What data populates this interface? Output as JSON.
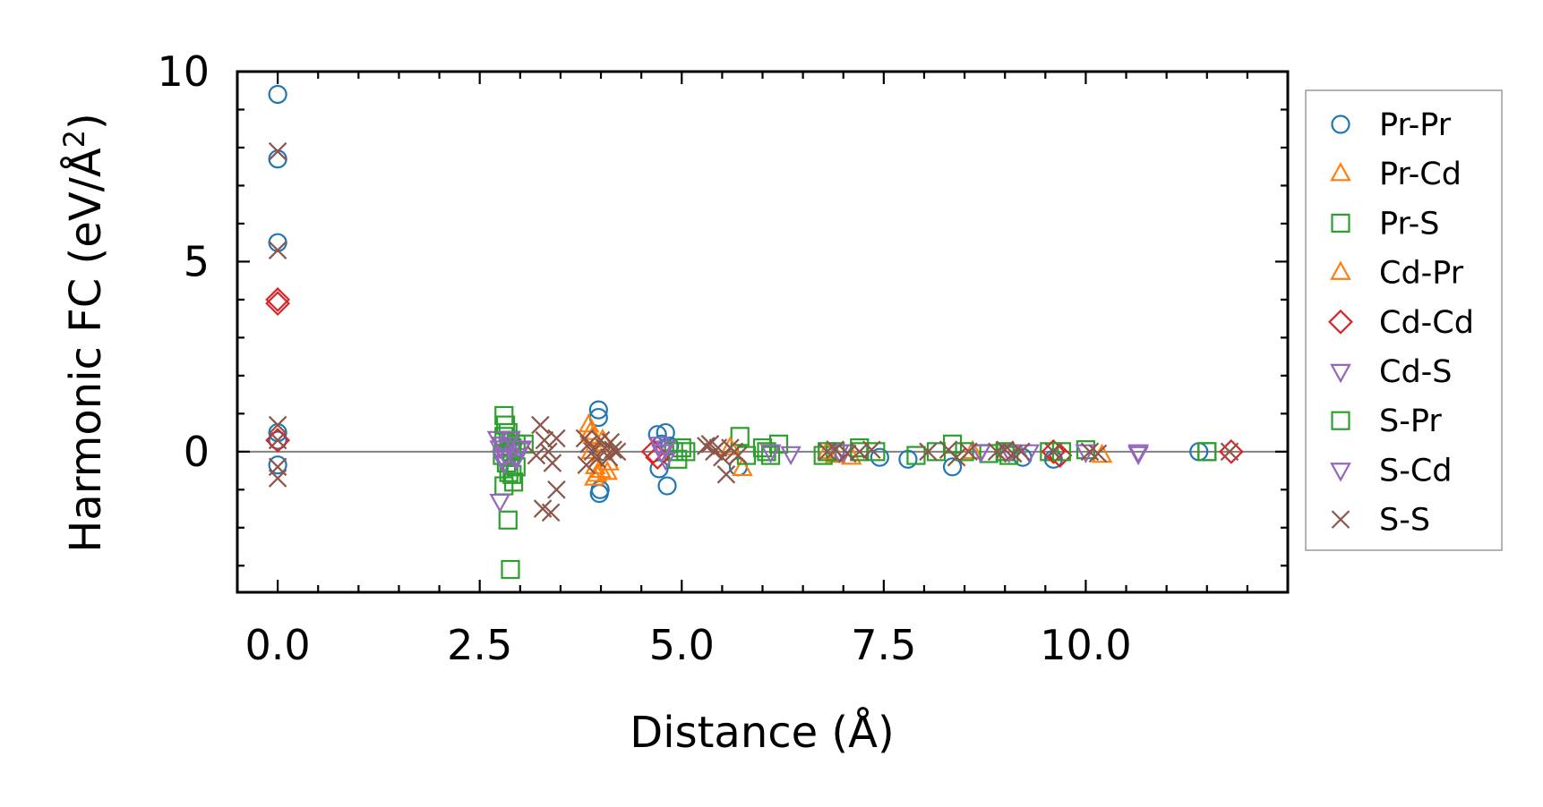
{
  "chart_data": {
    "type": "scatter",
    "title": "",
    "xlabel": "Distance (Å)",
    "ylabel_main": "Harmonic FC (eV/Å",
    "ylabel_sup": "2",
    "ylabel_close": ")",
    "xlim": [
      -0.5,
      12.5
    ],
    "ylim": [
      -3.7,
      10.0
    ],
    "xticks": [
      0.0,
      2.5,
      5.0,
      7.5,
      10.0
    ],
    "xtick_labels": [
      "0.0",
      "2.5",
      "5.0",
      "7.5",
      "10.0"
    ],
    "yticks": [
      0,
      5,
      10
    ],
    "ytick_labels": [
      "0",
      "5",
      "10"
    ],
    "grid": false,
    "legend_position": "right-outside",
    "zero_line": 0,
    "series": [
      {
        "name": "Pr-Pr",
        "marker": "circle",
        "color": "#1f77b4",
        "x": [
          0,
          0,
          0,
          0,
          0,
          0,
          3.97,
          3.97,
          3.98,
          3.99,
          4.0,
          4.7,
          4.72,
          4.75,
          4.8,
          4.82,
          4.85,
          5.7,
          7.45,
          7.8,
          8.35,
          9.22,
          9.6,
          11.4
        ],
        "y": [
          9.4,
          7.7,
          5.5,
          0.3,
          -0.35,
          0.5,
          1.1,
          0.9,
          -1.1,
          -1.0,
          0.0,
          0.45,
          -0.45,
          0.2,
          0.5,
          -0.9,
          0.15,
          -0.4,
          -0.15,
          -0.2,
          -0.4,
          -0.15,
          -0.2,
          0.0
        ]
      },
      {
        "name": "Pr-Cd",
        "marker": "triangle-up",
        "color": "#ff7f0e",
        "x": [
          3.85,
          3.9,
          3.95,
          4.0,
          4.05,
          4.1,
          3.88,
          3.92,
          5.75,
          6.9,
          7.1,
          8.6,
          10.2
        ],
        "y": [
          0.7,
          0.4,
          -0.6,
          -0.5,
          0.2,
          -0.3,
          0.0,
          -0.7,
          -0.45,
          -0.1,
          -0.15,
          0.0,
          -0.1
        ]
      },
      {
        "name": "Pr-S",
        "marker": "square",
        "color": "#2ca02c",
        "x": [
          2.8,
          2.82,
          2.85,
          2.88,
          2.9,
          2.78,
          2.83,
          2.86,
          2.92,
          2.95,
          2.8,
          2.85,
          2.9,
          2.88,
          4.9,
          4.95,
          5.0,
          5.72,
          5.8,
          6.0,
          6.1,
          6.2,
          6.75,
          6.9,
          7.2,
          7.4,
          7.9,
          8.15,
          8.35,
          8.8,
          9.05,
          9.55,
          10.0,
          11.5
        ],
        "y": [
          0.95,
          0.7,
          0.5,
          0.3,
          0.1,
          -0.1,
          -0.3,
          -0.55,
          -0.8,
          0.2,
          -0.9,
          -1.8,
          -0.6,
          -3.1,
          0.0,
          -0.2,
          0.1,
          0.4,
          -0.1,
          0.1,
          -0.1,
          0.2,
          -0.1,
          0.0,
          0.1,
          0.0,
          -0.1,
          0.0,
          0.2,
          -0.05,
          -0.1,
          0.0,
          0.05,
          0.0
        ]
      },
      {
        "name": "Cd-Pr",
        "marker": "triangle-up",
        "color": "#ff7f0e",
        "x": [
          3.87,
          3.93,
          4.02,
          4.08,
          5.6,
          6.8
        ],
        "y": [
          0.5,
          -0.4,
          0.3,
          -0.55,
          0.1,
          0.0
        ]
      },
      {
        "name": "Cd-Cd",
        "marker": "diamond",
        "color": "#d62728",
        "x": [
          0,
          0,
          0,
          4.65,
          4.7,
          9.6,
          9.68,
          11.8
        ],
        "y": [
          4.0,
          3.9,
          0.3,
          0.0,
          -0.15,
          0.0,
          -0.1,
          0.0
        ]
      },
      {
        "name": "Cd-S",
        "marker": "triangle-down",
        "color": "#9467bd",
        "x": [
          2.72,
          2.75,
          2.78,
          2.8,
          2.85,
          2.9,
          2.95,
          3.0,
          4.72,
          4.75,
          4.8,
          6.35,
          7.0,
          8.7,
          9.05,
          9.3,
          10.65
        ],
        "y": [
          0.35,
          0.1,
          -0.15,
          -0.3,
          0.2,
          0.0,
          -0.1,
          0.05,
          0.2,
          0.0,
          -0.2,
          -0.05,
          0.0,
          0.0,
          0.0,
          0.0,
          -0.05
        ]
      },
      {
        "name": "S-Pr",
        "marker": "square",
        "color": "#2ca02c",
        "x": [
          2.8,
          2.9,
          2.95,
          3.05,
          5.05,
          6.05,
          6.8,
          7.2,
          8.5,
          9.0,
          9.7,
          11.5
        ],
        "y": [
          0.4,
          0.0,
          -0.4,
          0.2,
          0.0,
          0.0,
          0.0,
          0.0,
          0.0,
          0.0,
          0.0,
          0.0
        ]
      },
      {
        "name": "S-Cd",
        "marker": "triangle-down",
        "color": "#9467bd",
        "x": [
          2.75,
          2.78,
          2.82,
          2.88,
          2.95,
          3.02,
          4.8,
          6.1,
          6.95,
          8.7,
          9.05,
          10.0,
          10.65
        ],
        "y": [
          -1.3,
          0.2,
          -0.1,
          0.35,
          -0.2,
          0.1,
          0.1,
          0.0,
          0.0,
          0.0,
          0.0,
          0.0,
          0.0
        ]
      },
      {
        "name": "S-S",
        "marker": "x",
        "color": "#8c564b",
        "x": [
          0,
          0,
          0,
          0,
          0,
          0,
          3.25,
          3.3,
          3.35,
          3.4,
          3.45,
          3.2,
          3.28,
          3.38,
          3.45,
          3.8,
          3.85,
          3.9,
          3.95,
          4.0,
          4.05,
          4.1,
          4.15,
          4.2,
          3.82,
          4.12,
          5.3,
          5.4,
          5.5,
          5.6,
          5.7,
          5.55,
          5.35,
          5.65,
          5.45,
          6.8,
          6.9,
          7.05,
          7.2,
          7.35,
          8.05,
          8.3,
          8.4,
          8.55,
          8.9,
          9.0,
          9.1,
          9.2,
          9.6,
          10.05,
          10.15,
          11.78
        ],
        "y": [
          7.9,
          5.3,
          0.7,
          0.3,
          -0.4,
          -0.7,
          0.7,
          0.3,
          0.0,
          -0.3,
          0.35,
          -0.1,
          -1.5,
          -1.6,
          -1.0,
          0.35,
          0.2,
          0.0,
          -0.2,
          0.3,
          0.1,
          -0.15,
          0.05,
          0.0,
          -0.35,
          0.25,
          0.15,
          0.0,
          -0.15,
          0.1,
          -0.1,
          -0.6,
          0.2,
          0.0,
          0.1,
          0.0,
          0.05,
          -0.05,
          0.0,
          0.05,
          0.0,
          0.05,
          -0.15,
          0.0,
          0.0,
          0.05,
          -0.05,
          0.0,
          0.0,
          0.0,
          -0.05,
          0.0
        ]
      }
    ]
  }
}
